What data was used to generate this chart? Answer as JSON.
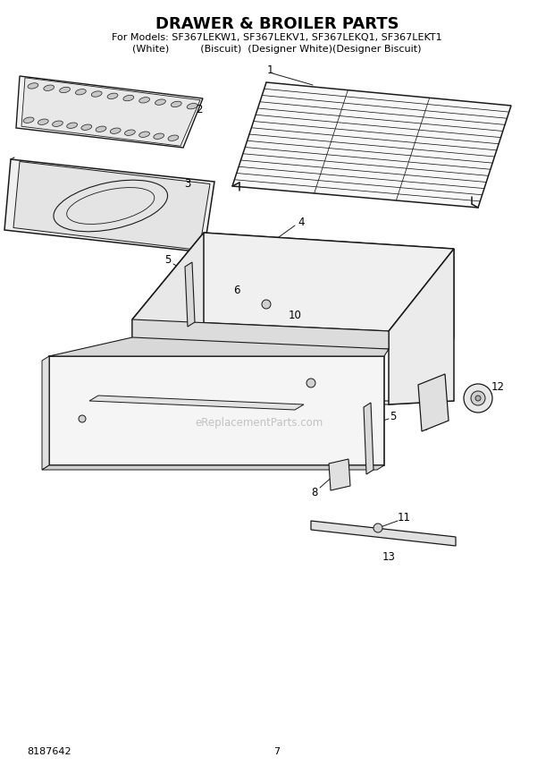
{
  "title": "DRAWER & BROILER PARTS",
  "subtitle_line1": "For Models: SF367LEKW1, SF367LEKV1, SF367LEKQ1, SF367LEKT1",
  "subtitle_line2": "(White)          (Biscuit)  (Designer White)(Designer Biscuit)",
  "part_number": "8187642",
  "page_number": "7",
  "bg_color": "#ffffff",
  "line_color": "#1a1a1a",
  "fig_width": 6.2,
  "fig_height": 8.56,
  "dpi": 100
}
